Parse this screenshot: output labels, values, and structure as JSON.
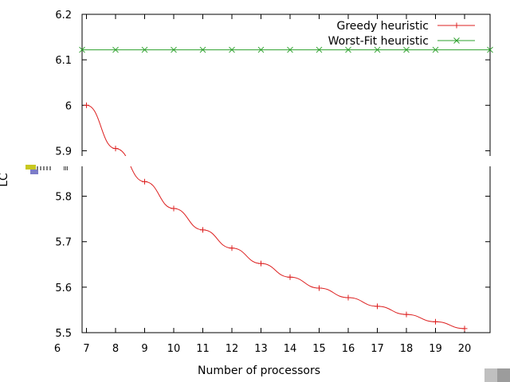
{
  "chart_data": {
    "type": "line",
    "title": "",
    "xlabel": "Number of processors",
    "ylabel": "LC",
    "x_ticks": [
      6,
      7,
      8,
      9,
      10,
      11,
      12,
      13,
      14,
      15,
      16,
      17,
      18,
      19,
      20
    ],
    "y_ticks": [
      5.5,
      5.6,
      5.7,
      5.8,
      5.9,
      6,
      6.1,
      6.2
    ],
    "y_tick_labels": [
      "5.5",
      "5.6",
      "5.7",
      "5.8",
      "5.9",
      "6",
      "6.1",
      "6.2"
    ],
    "xlim": [
      6,
      20
    ],
    "ylim": [
      5.5,
      6.2
    ],
    "grid": false,
    "legend_position": "top-right",
    "series": [
      {
        "name": "Greedy heuristic",
        "color": "#dd2020",
        "marker": "plus",
        "x": [
          7,
          8,
          9,
          10,
          11,
          12,
          13,
          14,
          15,
          16,
          17,
          18,
          19,
          20
        ],
        "y": [
          6.0,
          5.905,
          5.832,
          5.773,
          5.726,
          5.686,
          5.652,
          5.622,
          5.598,
          5.577,
          5.558,
          5.54,
          5.524,
          5.509
        ]
      },
      {
        "name": "Worst-Fit heuristic",
        "color": "#2ca02c",
        "marker": "x",
        "x": [
          7,
          8,
          9,
          10,
          11,
          12,
          13,
          14,
          15,
          16,
          17,
          18,
          19,
          20
        ],
        "y": [
          6.122,
          6.122,
          6.122,
          6.122,
          6.122,
          6.122,
          6.122,
          6.122,
          6.122,
          6.122,
          6.122,
          6.122,
          6.122,
          6.122
        ]
      }
    ]
  }
}
